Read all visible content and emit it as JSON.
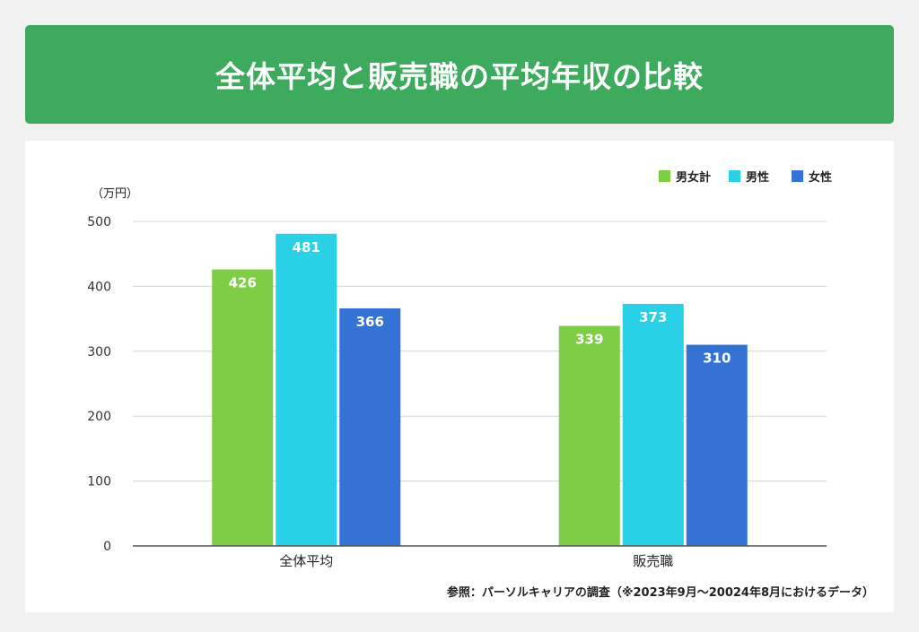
{
  "header": {
    "title": "全体平均と販売職の平均年収の比較"
  },
  "chart_data": {
    "type": "bar",
    "unit_label": "（万円）",
    "categories": [
      "全体平均",
      "販売職"
    ],
    "series": [
      {
        "name": "男女計",
        "color": "#7fcc45",
        "values": [
          426,
          339
        ]
      },
      {
        "name": "男性",
        "color": "#2ad0e6",
        "values": [
          481,
          373
        ]
      },
      {
        "name": "女性",
        "color": "#3473d4",
        "values": [
          366,
          310
        ]
      }
    ],
    "ylim": [
      0,
      500
    ],
    "yticks": [
      0,
      100,
      200,
      300,
      400,
      500
    ],
    "grid": true,
    "legend_position": "top-right",
    "source_note": "参照：パーソルキャリアの調査（※2023年9月〜20024年8月におけるデータ）"
  }
}
